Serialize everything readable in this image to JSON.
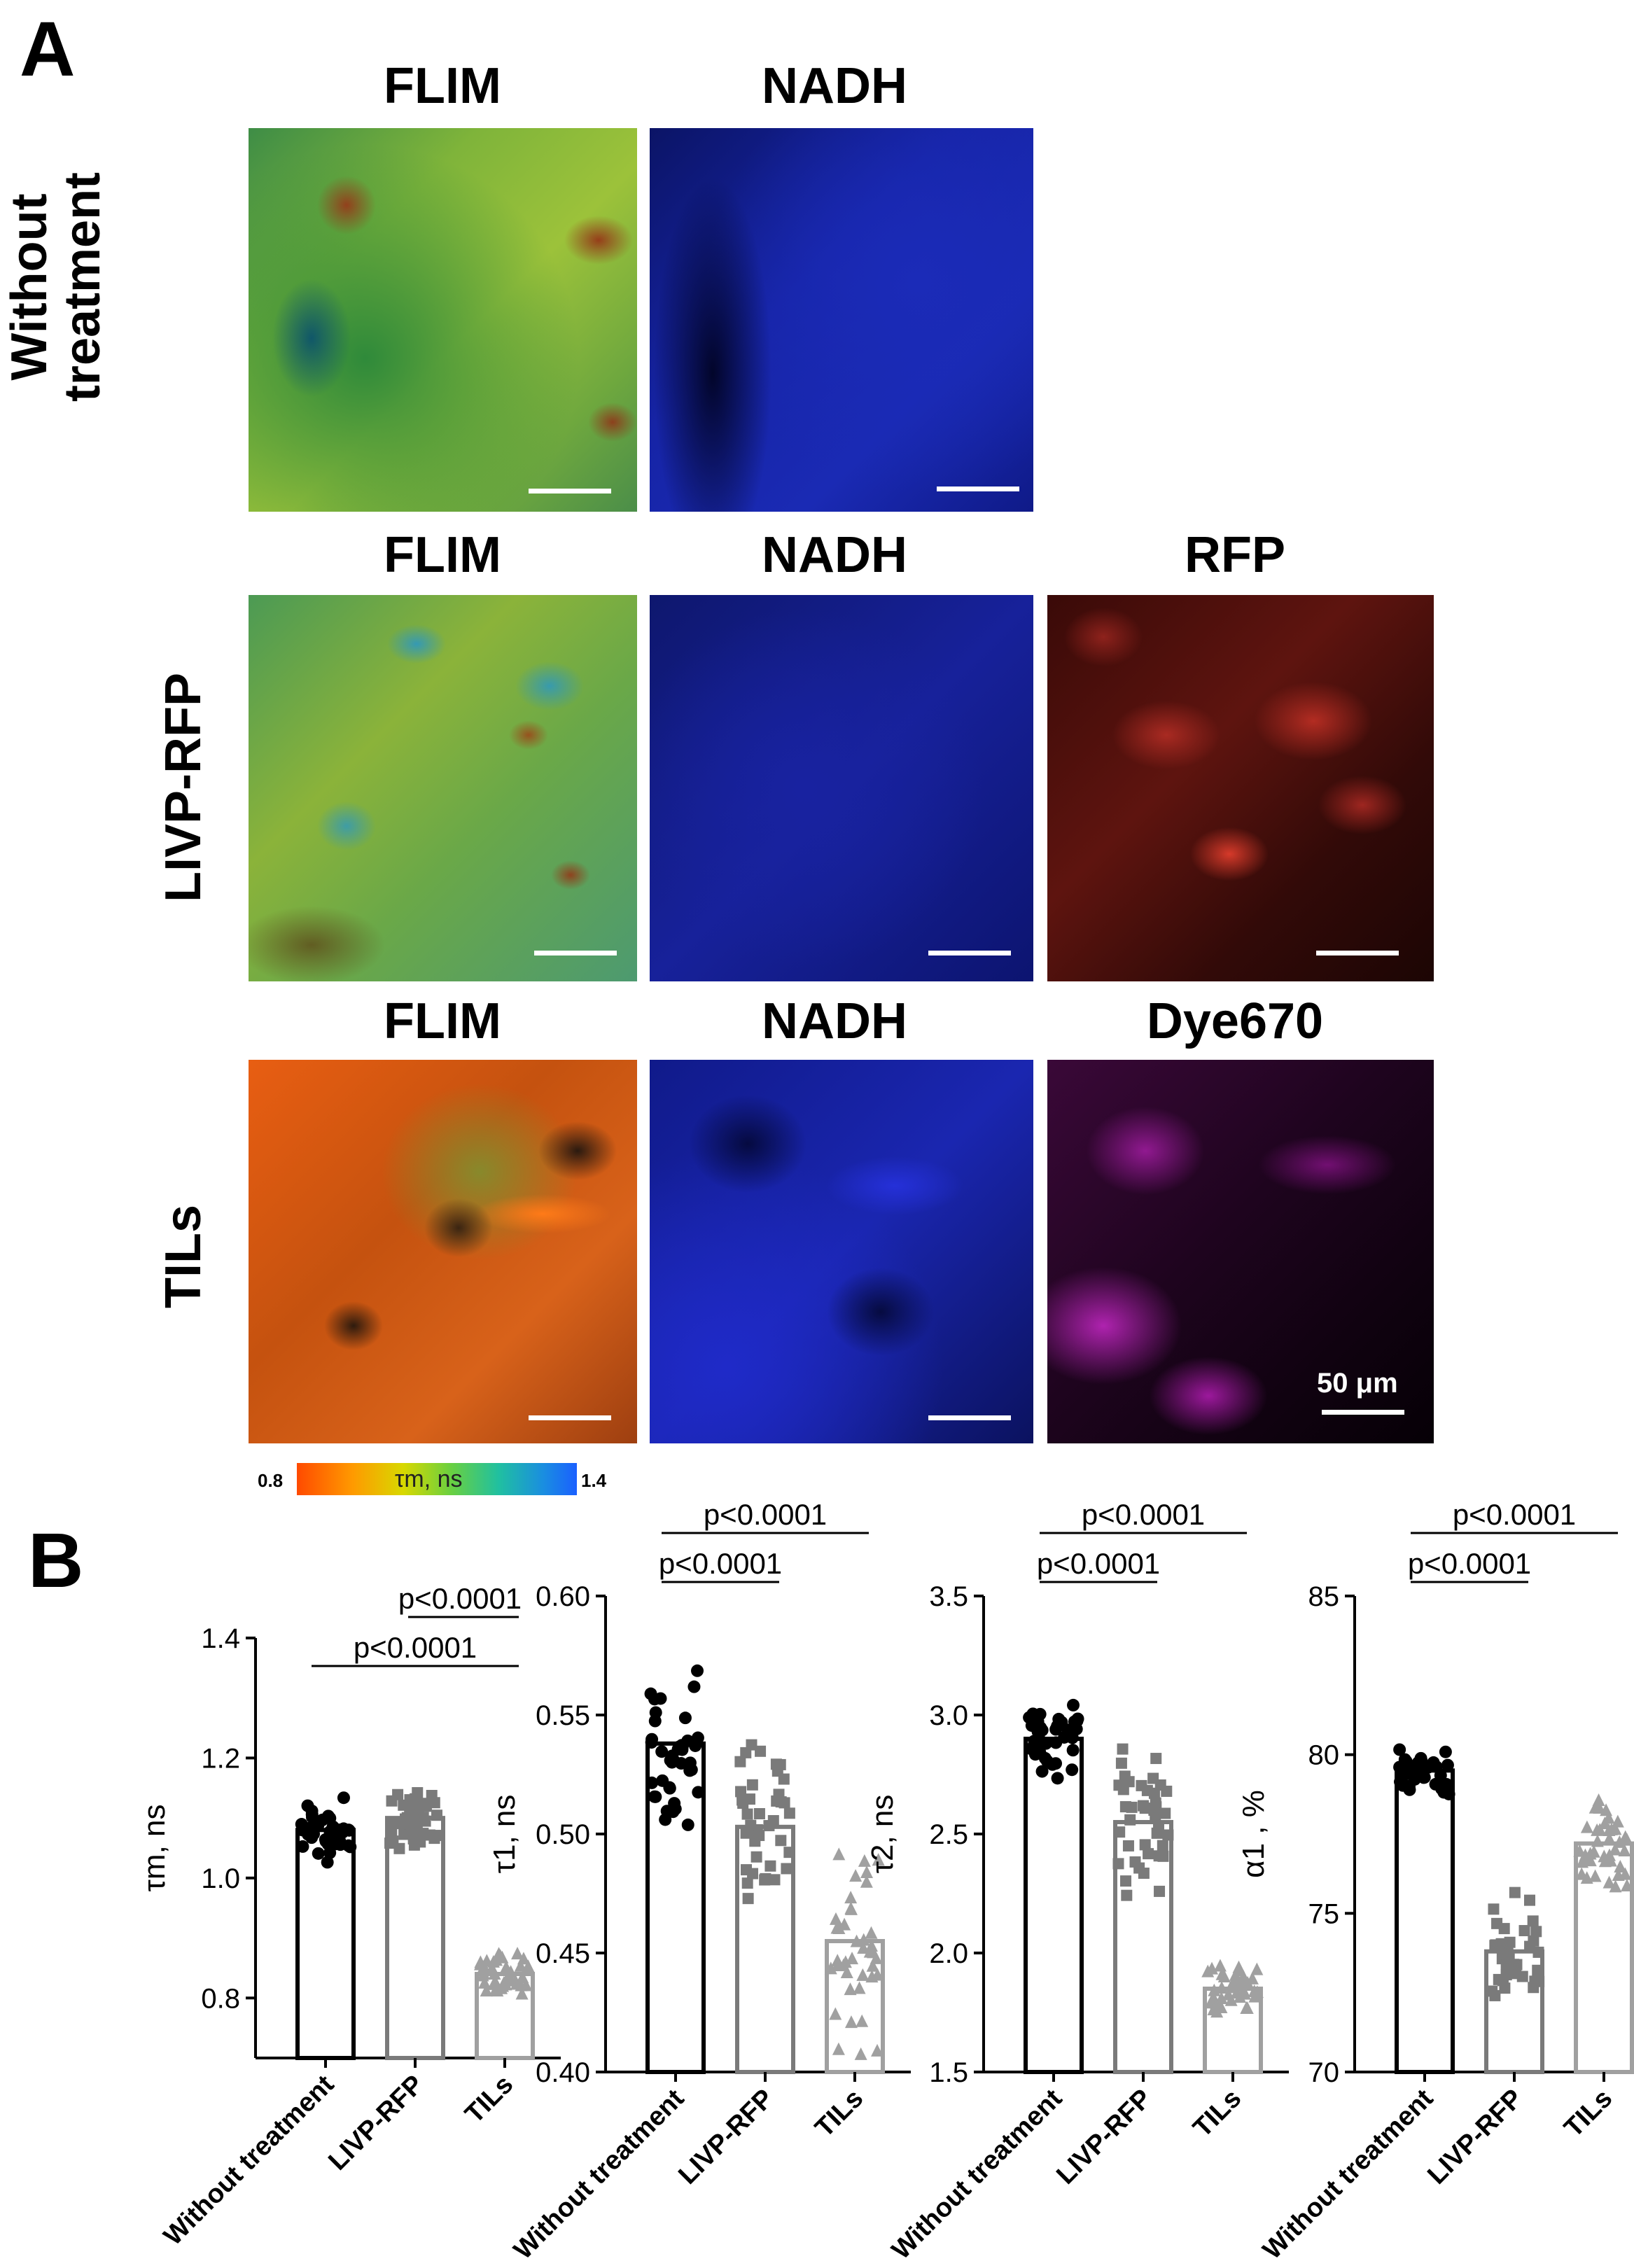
{
  "panel_a": {
    "letter": "A",
    "row1": {
      "label_line1": "Without",
      "label_line2": "treatment",
      "titles": [
        "FLIM",
        "NADH"
      ]
    },
    "row2": {
      "label": "LIVP-RFP",
      "titles": [
        "FLIM",
        "NADH",
        "RFP"
      ]
    },
    "row3": {
      "label": "TILs",
      "titles": [
        "FLIM",
        "NADH",
        "Dye670"
      ]
    },
    "scale_label": "50 μm",
    "colorbar": {
      "min": "0.8",
      "max": "1.4",
      "label": "τm, ns"
    }
  },
  "panel_b": {
    "letter": "B"
  },
  "chart_data": [
    {
      "type": "bar",
      "categories": [
        "Without treatment",
        "LIVP-RFP",
        "TILs"
      ],
      "values": [
        1.08,
        1.1,
        0.84
      ],
      "ylabel": "τm, ns",
      "ylim": [
        0.7,
        1.4
      ],
      "yticks": [
        "0.8",
        "1.0",
        "1.2",
        "1.4"
      ],
      "colors": [
        "#000000",
        "#7a7a7a",
        "#a0a0a0"
      ],
      "markers": [
        "circle",
        "square",
        "triangle"
      ],
      "annotations": [
        {
          "from": 0,
          "to": 2,
          "text": "p<0.0001"
        },
        {
          "from": 1,
          "to": 2,
          "text": "p<0.0001"
        }
      ]
    },
    {
      "type": "bar",
      "categories": [
        "Without treatment",
        "LIVP-RFP",
        "TILs"
      ],
      "values": [
        0.538,
        0.503,
        0.455
      ],
      "ylabel": "τ1, ns",
      "ylim": [
        0.4,
        0.6
      ],
      "yticks": [
        "0.40",
        "0.45",
        "0.50",
        "0.55",
        "0.60"
      ],
      "colors": [
        "#000000",
        "#7a7a7a",
        "#a0a0a0"
      ],
      "markers": [
        "circle",
        "square",
        "triangle"
      ],
      "annotations": [
        {
          "from": 0,
          "to": 1,
          "text": "p<0.0001"
        },
        {
          "from": 0,
          "to": 2,
          "text": "p<0.0001"
        }
      ]
    },
    {
      "type": "bar",
      "categories": [
        "Without treatment",
        "LIVP-RFP",
        "TILs"
      ],
      "values": [
        2.9,
        2.55,
        1.85
      ],
      "ylabel": "τ2, ns",
      "ylim": [
        1.5,
        3.5
      ],
      "yticks": [
        "1.5",
        "2.0",
        "2.5",
        "3.0",
        "3.5"
      ],
      "colors": [
        "#000000",
        "#7a7a7a",
        "#a0a0a0"
      ],
      "markers": [
        "circle",
        "square",
        "triangle"
      ],
      "annotations": [
        {
          "from": 0,
          "to": 1,
          "text": "p<0.0001"
        },
        {
          "from": 0,
          "to": 2,
          "text": "p<0.0001"
        }
      ]
    },
    {
      "type": "bar",
      "categories": [
        "Without treatment",
        "LIVP-RFP",
        "TILs"
      ],
      "values": [
        79.5,
        73.8,
        77.2
      ],
      "ylabel": "α1 , %",
      "ylim": [
        70,
        85
      ],
      "yticks": [
        "70",
        "75",
        "80",
        "85"
      ],
      "colors": [
        "#000000",
        "#7a7a7a",
        "#a0a0a0"
      ],
      "markers": [
        "circle",
        "square",
        "triangle"
      ],
      "annotations": [
        {
          "from": 0,
          "to": 1,
          "text": "p<0.0001"
        },
        {
          "from": 0,
          "to": 2,
          "text": "p<0.0001"
        }
      ]
    }
  ]
}
